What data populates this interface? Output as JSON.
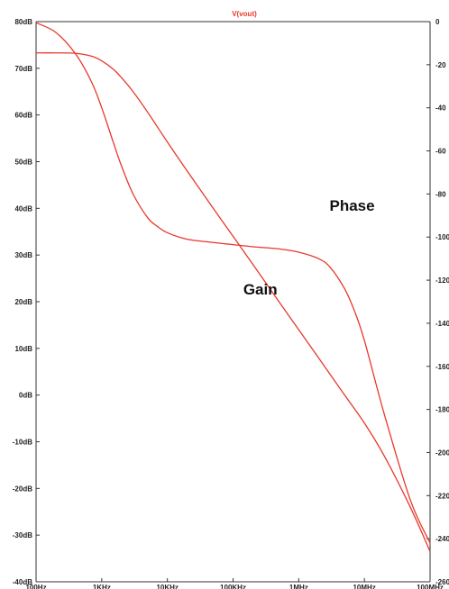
{
  "chart_data": {
    "type": "line",
    "title": "V(vout)",
    "x_scale": "log",
    "x_ticks": [
      {
        "value": 100,
        "label": "100Hz"
      },
      {
        "value": 1000,
        "label": "1KHz"
      },
      {
        "value": 10000,
        "label": "10KHz"
      },
      {
        "value": 100000,
        "label": "100KHz"
      },
      {
        "value": 1000000,
        "label": "1MHz"
      },
      {
        "value": 10000000,
        "label": "10MHz"
      },
      {
        "value": 100000000,
        "label": "100MHz"
      }
    ],
    "xlim": [
      100,
      100000000
    ],
    "y_left": {
      "range": [
        -40,
        80
      ],
      "ticks": [
        {
          "value": 80,
          "label": "80dB"
        },
        {
          "value": 70,
          "label": "70dB"
        },
        {
          "value": 60,
          "label": "60dB"
        },
        {
          "value": 50,
          "label": "50dB"
        },
        {
          "value": 40,
          "label": "40dB"
        },
        {
          "value": 30,
          "label": "30dB"
        },
        {
          "value": 20,
          "label": "20dB"
        },
        {
          "value": 10,
          "label": "10dB"
        },
        {
          "value": 0,
          "label": "0dB"
        },
        {
          "value": -10,
          "label": "-10dB"
        },
        {
          "value": -20,
          "label": "-20dB"
        },
        {
          "value": -30,
          "label": "-30dB"
        },
        {
          "value": -40,
          "label": "-40dB"
        }
      ]
    },
    "y_right": {
      "range": [
        -260,
        0
      ],
      "ticks": [
        {
          "value": 0,
          "label": "0"
        },
        {
          "value": -20,
          "label": "-20"
        },
        {
          "value": -40,
          "label": "-40"
        },
        {
          "value": -60,
          "label": "-60"
        },
        {
          "value": -80,
          "label": "-80"
        },
        {
          "value": -100,
          "label": "-100"
        },
        {
          "value": -120,
          "label": "-120"
        },
        {
          "value": -140,
          "label": "-140"
        },
        {
          "value": -160,
          "label": "-160"
        },
        {
          "value": -180,
          "label": "-180"
        },
        {
          "value": -200,
          "label": "-200"
        },
        {
          "value": -220,
          "label": "-220"
        },
        {
          "value": -240,
          "label": "-240"
        },
        {
          "value": -260,
          "label": "-260"
        }
      ]
    },
    "series": [
      {
        "name": "Gain",
        "axis": "left",
        "color": "#e8382a",
        "x": [
          100,
          200,
          400,
          700,
          1000,
          1500,
          2000,
          3000,
          5000,
          10000,
          20000,
          50000,
          100000,
          200000,
          500000,
          1000000,
          2000000,
          5000000,
          10000000,
          20000000,
          50000000,
          100000000
        ],
        "y": [
          73.3,
          73.3,
          73.2,
          72.6,
          71.6,
          69.8,
          68.0,
          65.0,
          60.6,
          54.2,
          48.0,
          40.0,
          34.0,
          28.0,
          20.0,
          14.0,
          8.0,
          0.0,
          -6.0,
          -13.0,
          -24.0,
          -33.5
        ]
      },
      {
        "name": "Phase",
        "axis": "right",
        "color": "#e8382a",
        "x": [
          100,
          200,
          400,
          700,
          1000,
          1500,
          2000,
          3000,
          5000,
          7000,
          10000,
          20000,
          50000,
          100000,
          200000,
          500000,
          1000000,
          2000000,
          3000000,
          5000000,
          7000000,
          10000000,
          20000000,
          50000000,
          100000000
        ],
        "y": [
          -0.5,
          -5,
          -15,
          -28,
          -40,
          -56,
          -67,
          -80,
          -91,
          -95,
          -98,
          -101,
          -102.5,
          -103.5,
          -104.5,
          -105.5,
          -107,
          -110,
          -114,
          -124,
          -134,
          -148,
          -182,
          -222,
          -242
        ]
      }
    ],
    "annotations": [
      {
        "text": "Phase",
        "x": 6500000,
        "y_left": 39.5
      },
      {
        "text": "Gain",
        "x": 260000,
        "y_left": 21.5
      }
    ]
  }
}
